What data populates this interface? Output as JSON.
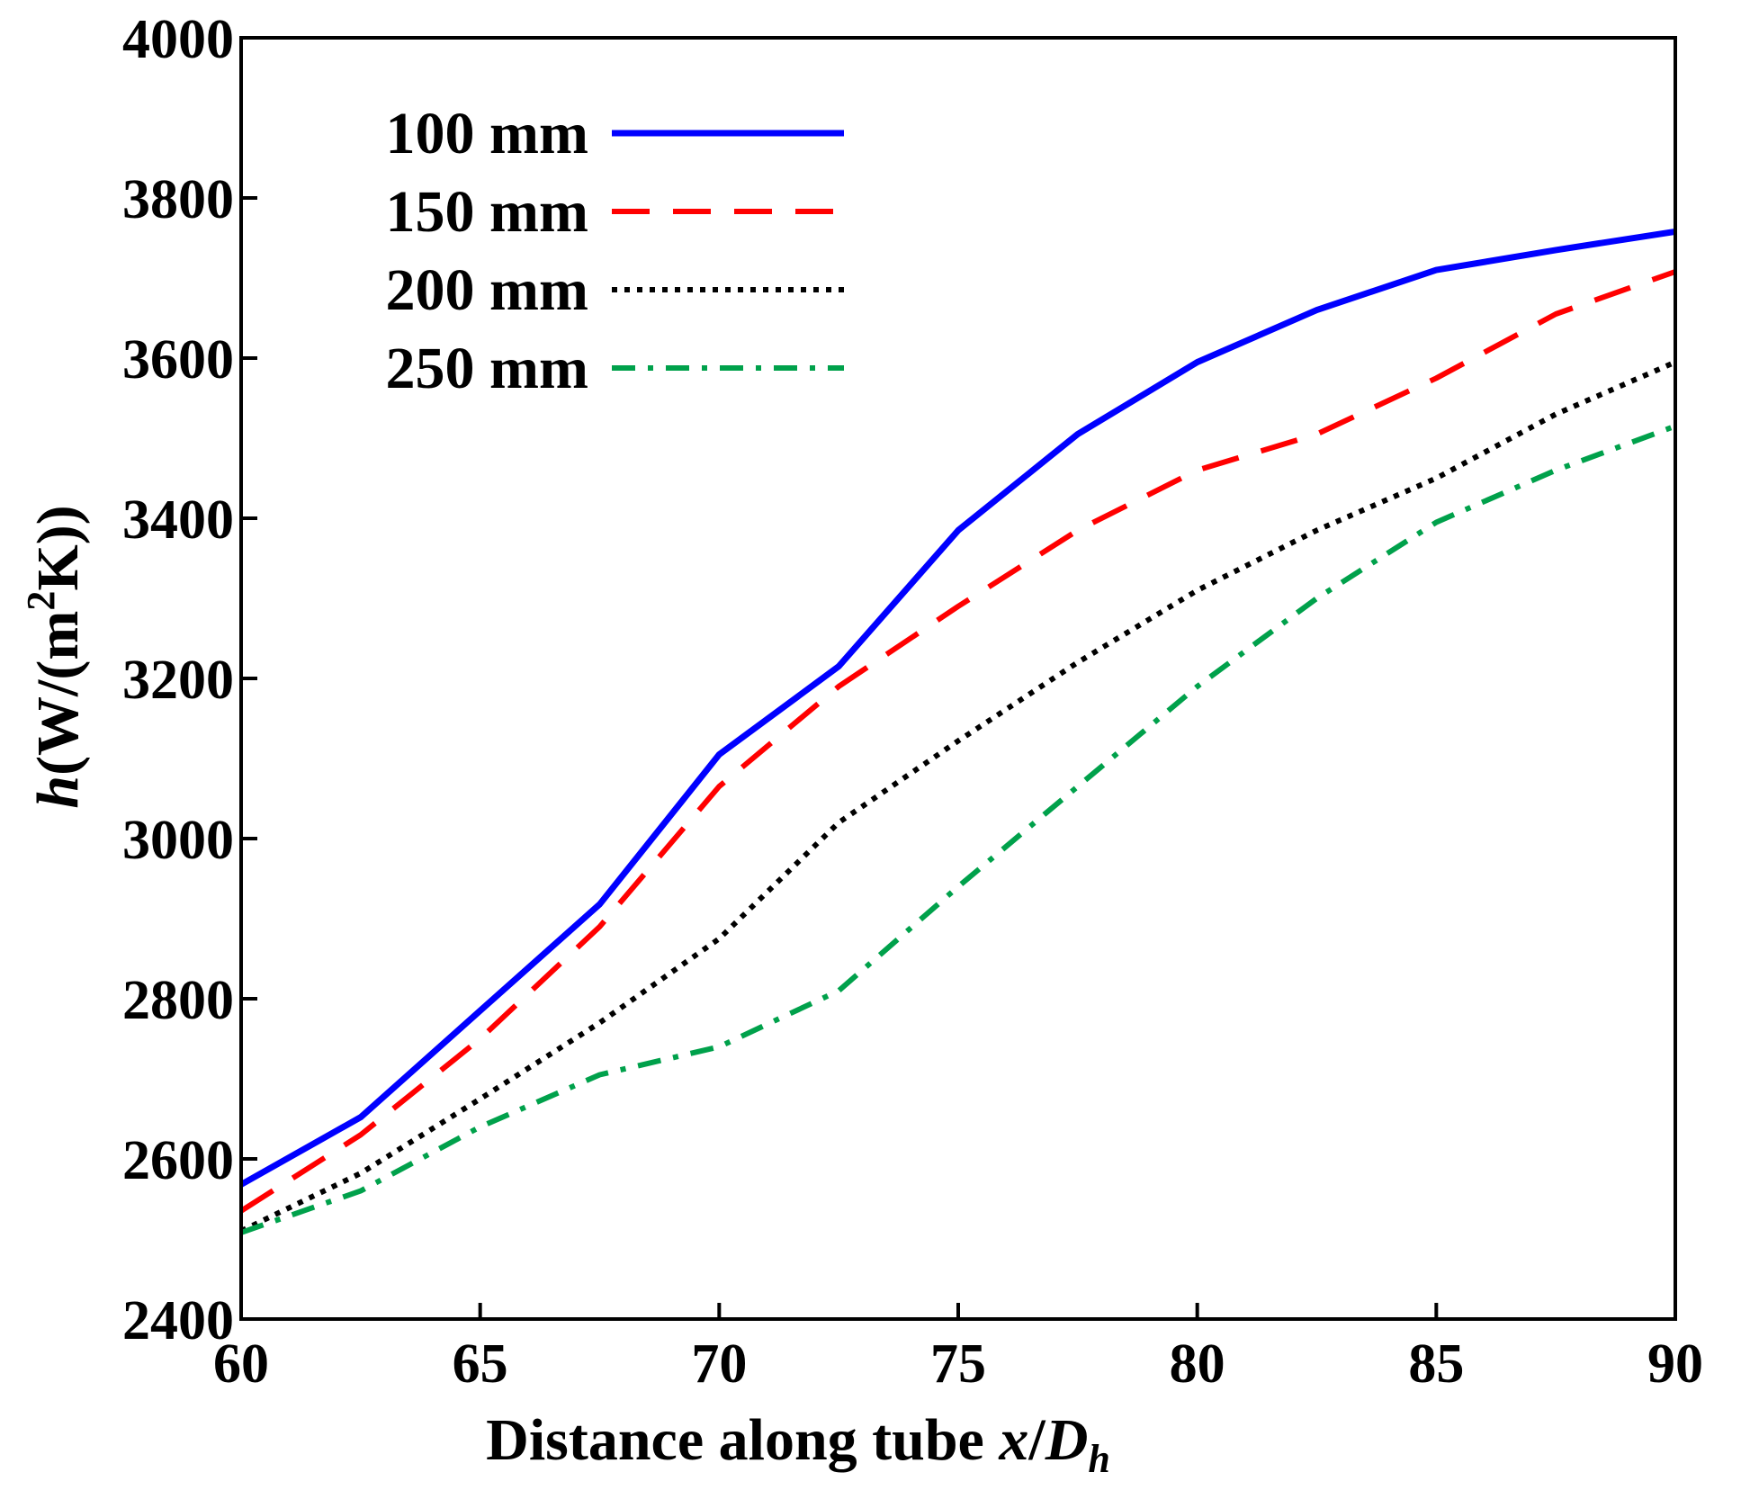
{
  "chart_data": {
    "type": "line",
    "title": "",
    "xlabel_parts": {
      "prefix": "Distance along tube ",
      "x": "x",
      "slash": "/",
      "D": "D",
      "sub": "h"
    },
    "ylabel_parts": {
      "h": "h",
      "open": "(W/(m",
      "sup": "2",
      "close": "K))"
    },
    "xlim": [
      60,
      90
    ],
    "ylim": [
      2400,
      4000
    ],
    "xticks": [
      60,
      65,
      70,
      75,
      80,
      85,
      90
    ],
    "yticks": [
      2400,
      2600,
      2800,
      3000,
      3200,
      3400,
      3600,
      3800,
      4000
    ],
    "legend_position": "top-left",
    "x": [
      60,
      62.5,
      65,
      67.5,
      70,
      72.5,
      75,
      77.5,
      80,
      82.5,
      85,
      87.5,
      90
    ],
    "series": [
      {
        "name": "100 mm",
        "color": "#0000ff",
        "style": "solid",
        "values": [
          2568,
          2652,
          2785,
          2918,
          3105,
          3215,
          3385,
          3505,
          3595,
          3660,
          3710,
          3735,
          3758
        ]
      },
      {
        "name": "150 mm",
        "color": "#ff0000",
        "style": "dashed",
        "values": [
          2535,
          2630,
          2750,
          2890,
          3065,
          3190,
          3290,
          3385,
          3460,
          3505,
          3575,
          3655,
          3708
        ]
      },
      {
        "name": "200 mm",
        "color": "#000000",
        "style": "dotted",
        "values": [
          2510,
          2582,
          2675,
          2770,
          2875,
          3020,
          3122,
          3220,
          3310,
          3385,
          3450,
          3530,
          3595
        ]
      },
      {
        "name": "250 mm",
        "color": "#00a14b",
        "style": "dashdot",
        "values": [
          2508,
          2560,
          2640,
          2705,
          2740,
          2810,
          2940,
          3065,
          3190,
          3300,
          3395,
          3460,
          3515
        ]
      }
    ]
  }
}
